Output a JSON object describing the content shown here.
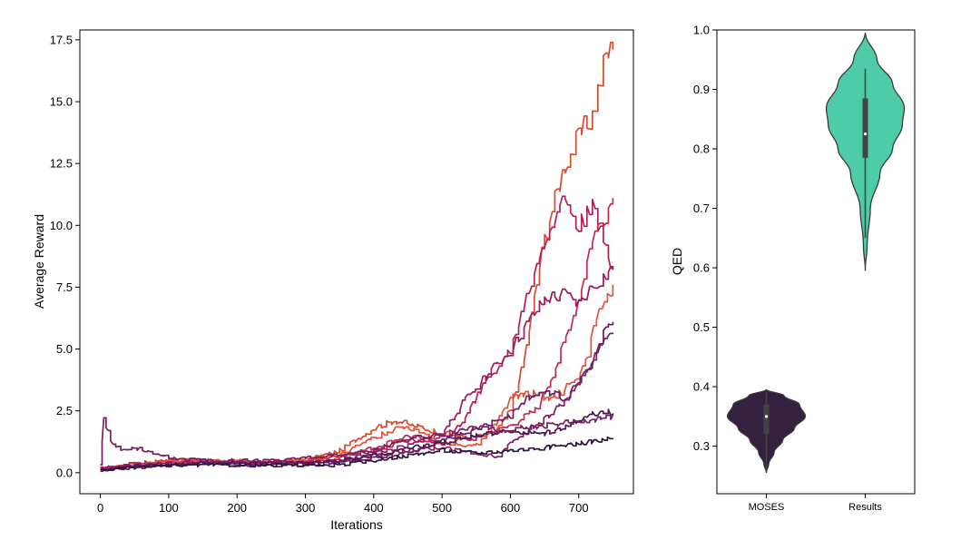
{
  "chart_data": [
    {
      "type": "line",
      "title": "",
      "xlabel": "Iterations",
      "ylabel": "Average Reward",
      "xlim": [
        -30,
        780
      ],
      "ylim": [
        -0.85,
        17.9
      ],
      "xticks": [
        "0",
        "100",
        "200",
        "300",
        "400",
        "500",
        "600",
        "700"
      ],
      "yticks": [
        "0.0",
        "2.5",
        "5.0",
        "7.5",
        "10.0",
        "12.5",
        "15.0",
        "17.5"
      ],
      "grid": false,
      "legend": "none",
      "series": [
        {
          "color": "#d9492e",
          "x": [
            0,
            50,
            100,
            150,
            200,
            250,
            300,
            350,
            400,
            430,
            460,
            500,
            550,
            580,
            600,
            620,
            650,
            680,
            700,
            720,
            740,
            750
          ],
          "y": [
            0.1,
            0.4,
            0.5,
            0.4,
            0.4,
            0.4,
            0.5,
            0.9,
            1.8,
            2.1,
            1.9,
            1.6,
            1.4,
            1.7,
            2.5,
            4.5,
            9.5,
            12.5,
            13.5,
            14.5,
            16.9,
            17.1
          ]
        },
        {
          "color": "#b21e55",
          "x": [
            0,
            50,
            100,
            150,
            200,
            250,
            300,
            350,
            400,
            450,
            500,
            530,
            560,
            600,
            620,
            650,
            680,
            700,
            720,
            740,
            750
          ],
          "y": [
            0.2,
            0.3,
            0.5,
            0.4,
            0.4,
            0.4,
            0.5,
            0.6,
            0.9,
            1.3,
            1.4,
            2.0,
            3.5,
            5.0,
            6.8,
            9.5,
            11.2,
            10.0,
            10.7,
            9.0,
            8.3
          ]
        },
        {
          "color": "#c22a4f",
          "x": [
            0,
            50,
            100,
            150,
            200,
            250,
            300,
            350,
            400,
            450,
            500,
            550,
            600,
            640,
            670,
            700,
            720,
            740,
            750
          ],
          "y": [
            0.1,
            0.4,
            0.5,
            0.5,
            0.4,
            0.4,
            0.5,
            0.7,
            1.0,
            1.5,
            1.2,
            1.4,
            1.9,
            2.6,
            4.5,
            7.0,
            9.5,
            10.5,
            11.1
          ]
        },
        {
          "color": "#9e1a5f",
          "x": [
            0,
            50,
            100,
            150,
            200,
            250,
            300,
            350,
            400,
            450,
            500,
            530,
            560,
            600,
            620,
            650,
            680,
            700,
            720,
            740,
            750
          ],
          "y": [
            0.2,
            0.3,
            0.4,
            0.4,
            0.4,
            0.4,
            0.4,
            0.5,
            0.8,
            1.1,
            1.6,
            2.8,
            3.8,
            4.9,
            5.8,
            7.0,
            7.2,
            6.8,
            7.5,
            8.0,
            8.2
          ]
        },
        {
          "color": "#e4523a",
          "x": [
            0,
            50,
            100,
            150,
            200,
            250,
            300,
            350,
            400,
            440,
            470,
            500,
            550,
            580,
            600,
            630,
            660,
            690,
            710,
            730,
            750
          ],
          "y": [
            0.1,
            0.3,
            0.5,
            0.5,
            0.5,
            0.4,
            0.5,
            0.7,
            1.4,
            1.9,
            1.7,
            1.2,
            1.1,
            2.0,
            3.0,
            3.2,
            3.0,
            3.6,
            4.5,
            6.5,
            7.6
          ]
        },
        {
          "color": "#6d1c68",
          "x": [
            0,
            50,
            100,
            150,
            200,
            250,
            300,
            350,
            400,
            450,
            500,
            550,
            600,
            620,
            650,
            680,
            700,
            720,
            740,
            750
          ],
          "y": [
            0.1,
            0.2,
            0.3,
            0.4,
            0.3,
            0.3,
            0.3,
            0.4,
            0.6,
            0.8,
            1.3,
            1.8,
            2.3,
            2.9,
            3.3,
            3.0,
            3.7,
            4.5,
            5.8,
            6.1
          ]
        },
        {
          "color": "#82205f",
          "x": [
            0,
            50,
            100,
            150,
            200,
            250,
            300,
            350,
            400,
            450,
            500,
            550,
            580,
            600,
            630,
            660,
            690,
            710,
            730,
            750
          ],
          "y": [
            0.1,
            0.3,
            0.4,
            0.4,
            0.4,
            0.4,
            0.4,
            0.5,
            0.7,
            0.9,
            1.0,
            0.8,
            0.6,
            1.2,
            1.8,
            2.4,
            3.2,
            4.0,
            5.0,
            5.6
          ]
        },
        {
          "color": "#491a57",
          "x": [
            0,
            50,
            100,
            150,
            200,
            250,
            300,
            350,
            400,
            450,
            500,
            550,
            600,
            650,
            700,
            720,
            740,
            750
          ],
          "y": [
            0.1,
            0.3,
            0.3,
            0.4,
            0.4,
            0.4,
            0.4,
            0.5,
            0.7,
            1.0,
            1.2,
            1.5,
            1.7,
            1.6,
            2.0,
            2.4,
            2.5,
            2.4
          ]
        },
        {
          "color": "#2d1640",
          "x": [
            0,
            50,
            100,
            150,
            200,
            250,
            300,
            350,
            400,
            450,
            500,
            550,
            600,
            650,
            700,
            730,
            750
          ],
          "y": [
            0.1,
            0.2,
            0.3,
            0.3,
            0.3,
            0.3,
            0.3,
            0.3,
            0.5,
            0.7,
            0.9,
            0.8,
            0.9,
            1.0,
            1.2,
            1.3,
            1.4
          ]
        },
        {
          "color": "#7a1d63",
          "x": [
            0,
            5,
            15,
            30,
            50,
            100,
            150,
            200,
            250,
            300,
            350,
            400,
            450,
            500,
            530,
            560,
            580,
            600,
            650,
            700,
            740,
            750
          ],
          "y": [
            0.3,
            2.2,
            1.3,
            0.9,
            1.0,
            0.6,
            0.5,
            0.5,
            0.5,
            0.6,
            0.7,
            0.9,
            1.4,
            1.5,
            1.7,
            1.9,
            1.6,
            1.8,
            1.9,
            2.1,
            2.2,
            2.3
          ]
        }
      ]
    },
    {
      "type": "violin",
      "title": "",
      "xlabel": "",
      "ylabel": "QED",
      "ylim": [
        0.22,
        1.0
      ],
      "yticks": [
        "0.3",
        "0.4",
        "0.5",
        "0.6",
        "0.7",
        "0.8",
        "0.9",
        "1.0"
      ],
      "categories": [
        "MOSES",
        "Results"
      ],
      "violins": [
        {
          "category": "MOSES",
          "color": "#34203f",
          "profile": [
            [
              0.255,
              0.0
            ],
            [
              0.27,
              0.06
            ],
            [
              0.29,
              0.2
            ],
            [
              0.31,
              0.42
            ],
            [
              0.33,
              0.72
            ],
            [
              0.35,
              1.0
            ],
            [
              0.37,
              0.85
            ],
            [
              0.385,
              0.45
            ],
            [
              0.395,
              0.0
            ]
          ],
          "q1": 0.32,
          "median": 0.35,
          "q3": 0.37,
          "whisker_low": 0.26,
          "whisker_high": 0.39
        },
        {
          "category": "Results",
          "color": "#4ecba7",
          "profile": [
            [
              0.595,
              0.0
            ],
            [
              0.64,
              0.05
            ],
            [
              0.7,
              0.13
            ],
            [
              0.76,
              0.38
            ],
            [
              0.8,
              0.7
            ],
            [
              0.84,
              0.95
            ],
            [
              0.87,
              1.0
            ],
            [
              0.91,
              0.7
            ],
            [
              0.95,
              0.3
            ],
            [
              0.995,
              0.0
            ]
          ],
          "q1": 0.785,
          "median": 0.825,
          "q3": 0.885,
          "whisker_low": 0.65,
          "whisker_high": 0.935
        }
      ]
    }
  ]
}
